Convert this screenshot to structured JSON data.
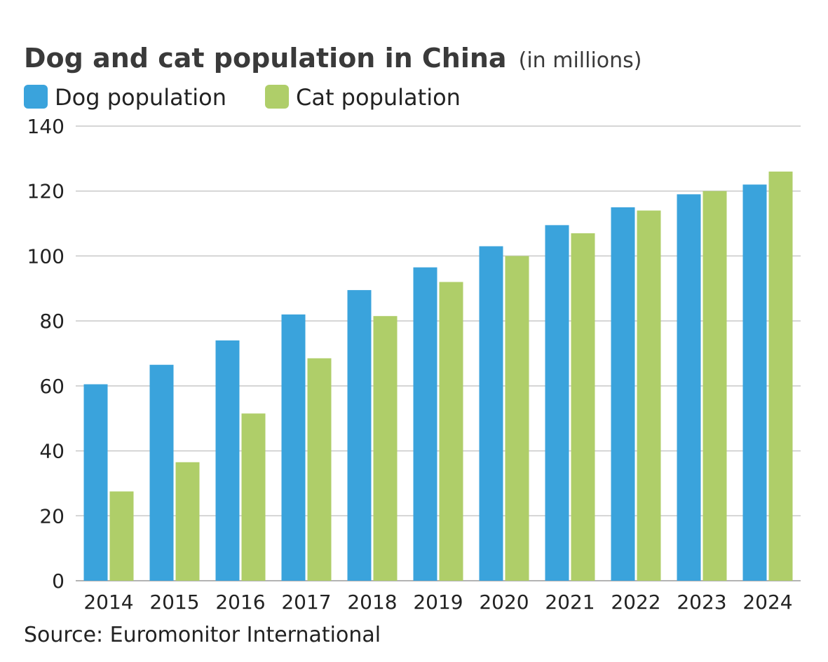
{
  "chart_data": {
    "type": "bar",
    "title": "Dog and cat population in China",
    "subtitle": "(in millions)",
    "categories": [
      "2014",
      "2015",
      "2016",
      "2017",
      "2018",
      "2019",
      "2020",
      "2021",
      "2022",
      "2023",
      "2024"
    ],
    "series": [
      {
        "name": "Dog population",
        "color": "#3aa3dc",
        "values": [
          60.5,
          66.5,
          74,
          82,
          89.5,
          96.5,
          103,
          109.5,
          115,
          119,
          122
        ]
      },
      {
        "name": "Cat population",
        "color": "#afce69",
        "values": [
          27.5,
          36.5,
          51.5,
          68.5,
          81.5,
          92,
          100,
          107,
          114,
          120,
          126
        ]
      }
    ],
    "ylim": [
      0,
      140
    ],
    "yticks": [
      0,
      20,
      40,
      60,
      80,
      100,
      120,
      140
    ],
    "xlabel": "",
    "ylabel": "",
    "grid": true,
    "legend_position": "top-left",
    "source": "Source: Euromonitor International"
  }
}
